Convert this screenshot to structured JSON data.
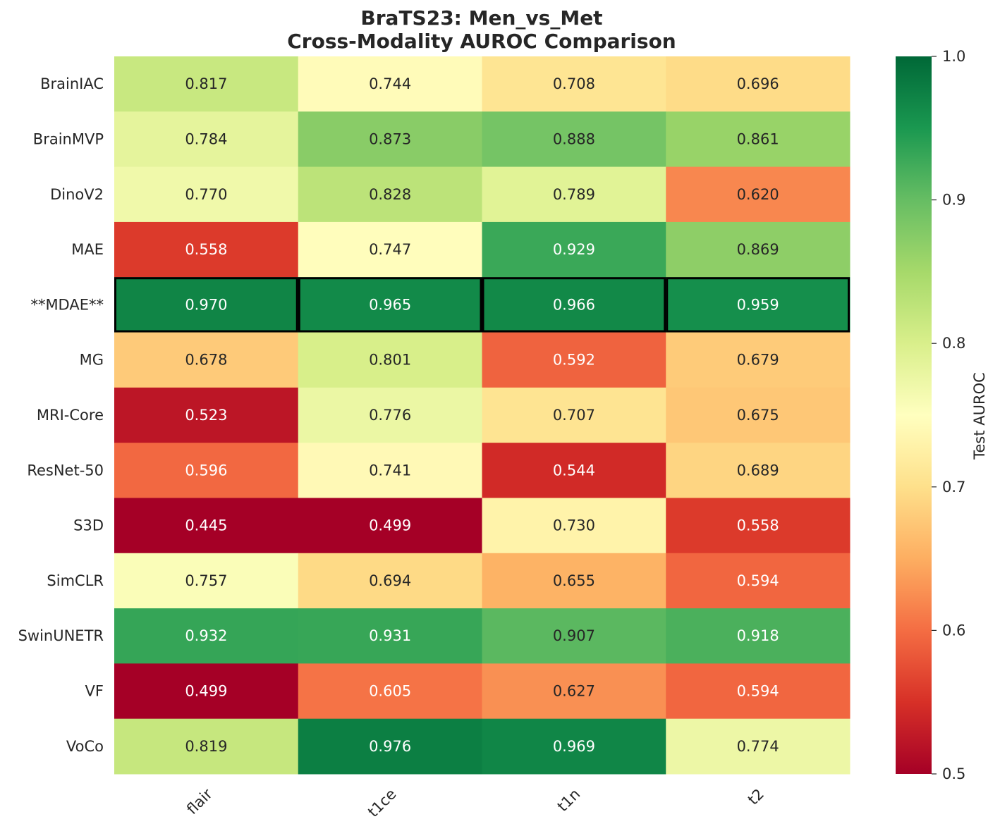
{
  "chart_data": {
    "type": "heatmap",
    "title": "BraTS23: Men_vs_Met",
    "subtitle": "Cross-Modality AUROC Comparison",
    "columns": [
      "flair",
      "t1ce",
      "t1n",
      "t2"
    ],
    "rows": [
      "BrainIAC",
      "BrainMVP",
      "DinoV2",
      "MAE",
      "**MDAE**",
      "MG",
      "MRI-Core",
      "ResNet-50",
      "S3D",
      "SimCLR",
      "SwinUNETR",
      "VF",
      "VoCo"
    ],
    "values": [
      [
        0.817,
        0.744,
        0.708,
        0.696
      ],
      [
        0.784,
        0.873,
        0.888,
        0.861
      ],
      [
        0.77,
        0.828,
        0.789,
        0.62
      ],
      [
        0.558,
        0.747,
        0.929,
        0.869
      ],
      [
        0.97,
        0.965,
        0.966,
        0.959
      ],
      [
        0.678,
        0.801,
        0.592,
        0.679
      ],
      [
        0.523,
        0.776,
        0.707,
        0.675
      ],
      [
        0.596,
        0.741,
        0.544,
        0.689
      ],
      [
        0.445,
        0.499,
        0.73,
        0.558
      ],
      [
        0.757,
        0.694,
        0.655,
        0.594
      ],
      [
        0.932,
        0.931,
        0.907,
        0.918
      ],
      [
        0.499,
        0.605,
        0.627,
        0.594
      ],
      [
        0.819,
        0.976,
        0.969,
        0.774
      ]
    ],
    "value_format": "0.000",
    "highlighted_row": "**MDAE**",
    "colormap": "RdYlGn",
    "vmin": 0.5,
    "vmax": 1.0,
    "colorbar_label": "Test AUROC",
    "colorbar_ticks": [
      "0.5",
      "0.6",
      "0.7",
      "0.8",
      "0.9",
      "1.0"
    ],
    "colors": {
      "highlight_border": "#000000",
      "dark_text": "#262626",
      "light_text": "#ffffff"
    }
  }
}
